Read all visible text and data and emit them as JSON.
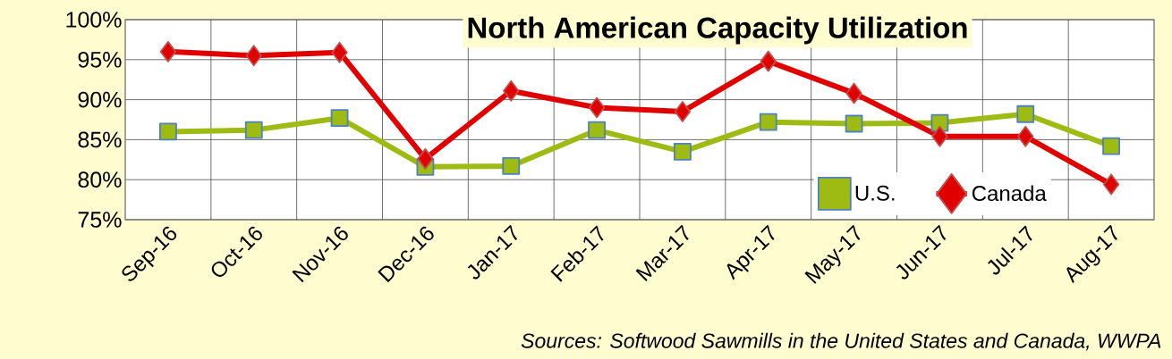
{
  "chart_data": {
    "type": "line",
    "title": "North American Capacity Utilization",
    "categories": [
      "Sep-16",
      "Oct-16",
      "Nov-16",
      "Dec-16",
      "Jan-17",
      "Feb-17",
      "Mar-17",
      "Apr-17",
      "May-17",
      "Jun-17",
      "Jul-17",
      "Aug-17"
    ],
    "series": [
      {
        "name": "U.S.",
        "color": "#9dbb12",
        "marker": "square",
        "values": [
          86,
          86.2,
          87.7,
          81.6,
          81.7,
          86.2,
          83.5,
          87.2,
          87,
          87.1,
          88.2,
          84.2
        ]
      },
      {
        "name": "Canada",
        "color": "#e00000",
        "marker": "diamond",
        "values": [
          96,
          95.5,
          95.9,
          82.6,
          91.1,
          89,
          88.5,
          94.8,
          90.8,
          85.4,
          85.4,
          79.4
        ]
      }
    ],
    "ylim": [
      75,
      100
    ],
    "yticks": [
      {
        "value": 75,
        "label": "75%"
      },
      {
        "value": 80,
        "label": "80%"
      },
      {
        "value": 85,
        "label": "85%"
      },
      {
        "value": 90,
        "label": "90%"
      },
      {
        "value": 95,
        "label": "95%"
      },
      {
        "value": 100,
        "label": "100%"
      }
    ],
    "grid": true,
    "legend": "bottom right",
    "annotations": [
      "Sources: Softwood Sawmills in the United States and Canada, WWPA"
    ]
  }
}
